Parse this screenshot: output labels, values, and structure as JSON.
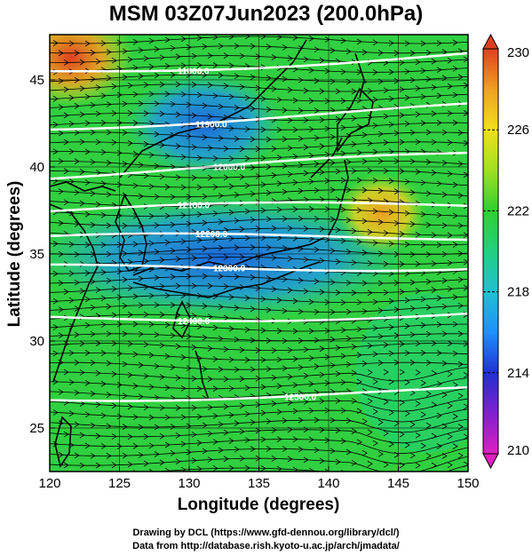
{
  "title": "MSM 03Z07Jun2023 (200.0hPa)",
  "xaxis": {
    "label": "Longitude (degrees)",
    "ticks": [
      120,
      125,
      130,
      135,
      140,
      145,
      150
    ],
    "range": [
      120,
      150
    ]
  },
  "yaxis": {
    "label": "Latitude  (degrees)",
    "ticks": [
      25,
      30,
      35,
      40,
      45
    ],
    "range": [
      22.5,
      47.6
    ]
  },
  "colorbar": {
    "ticks": [
      210,
      214,
      218,
      222,
      226,
      230
    ],
    "range": [
      210,
      230
    ],
    "colors": [
      "#e020c0",
      "#8020d0",
      "#2030d0",
      "#1e90ff",
      "#20c0d0",
      "#20d080",
      "#30d030",
      "#a0e020",
      "#f0e020",
      "#f0a020",
      "#e04020"
    ]
  },
  "contours": [
    {
      "label": "11800.0",
      "lat": 45.5
    },
    {
      "label": "11900.0",
      "lat": 42.4
    },
    {
      "label": "12000.0",
      "lat": 39.6
    },
    {
      "label": "12100.0",
      "lat": 37.5
    },
    {
      "label": "12200.0",
      "lat": 35.8
    },
    {
      "label": "12300.0",
      "lat": 34.1
    },
    {
      "label": "12400.0",
      "lat": 31.3
    },
    {
      "label": "12500.0",
      "lat": 26.8
    }
  ],
  "credits": [
    "Drawing by DCL (https://www.gfd-dennou.org/library/dcl/)",
    "Data from http://database.rish.kyoto-u.ac.jp/arch/jmadata/"
  ]
}
